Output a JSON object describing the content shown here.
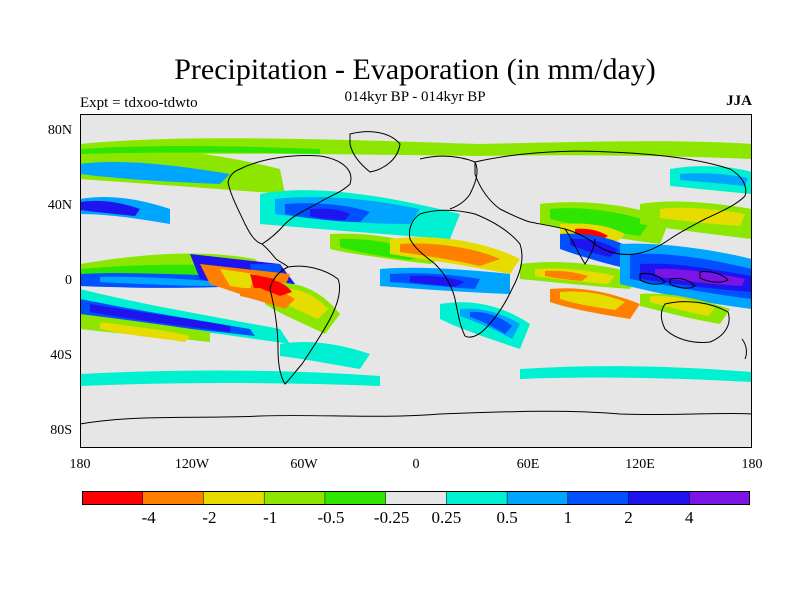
{
  "header": {
    "title": "Precipitation - Evaporation (in mm/day)",
    "subtitle": "014kyr BP - 014kyr BP",
    "left_label": "Expt = tdxoo-tdwto",
    "right_label": "JJA"
  },
  "axes": {
    "lat_labels": [
      "80N",
      "40N",
      "0",
      "40S",
      "80S"
    ],
    "lon_labels": [
      "180",
      "120W",
      "60W",
      "0",
      "60E",
      "120E",
      "180"
    ],
    "lat_values": [
      80,
      40,
      0,
      -40,
      -80
    ],
    "lon_values": [
      -180,
      -120,
      -60,
      0,
      60,
      120,
      180
    ],
    "lat_range": [
      -90,
      90
    ],
    "lon_range": [
      -180,
      180
    ]
  },
  "colorbar": {
    "colors": [
      "#ff0000",
      "#ff8000",
      "#e6dc00",
      "#8ce600",
      "#2ee600",
      "#e6e6e6",
      "#00f0d2",
      "#00a5ff",
      "#0050ff",
      "#1e14f0",
      "#7d14e6"
    ],
    "labels": [
      "-4",
      "-2",
      "-1",
      "-0.5",
      "-0.25",
      "0.25",
      "0.5",
      "1",
      "2",
      "4"
    ]
  },
  "colors": {
    "background": "#e6e6e6",
    "coastline": "#000000"
  }
}
